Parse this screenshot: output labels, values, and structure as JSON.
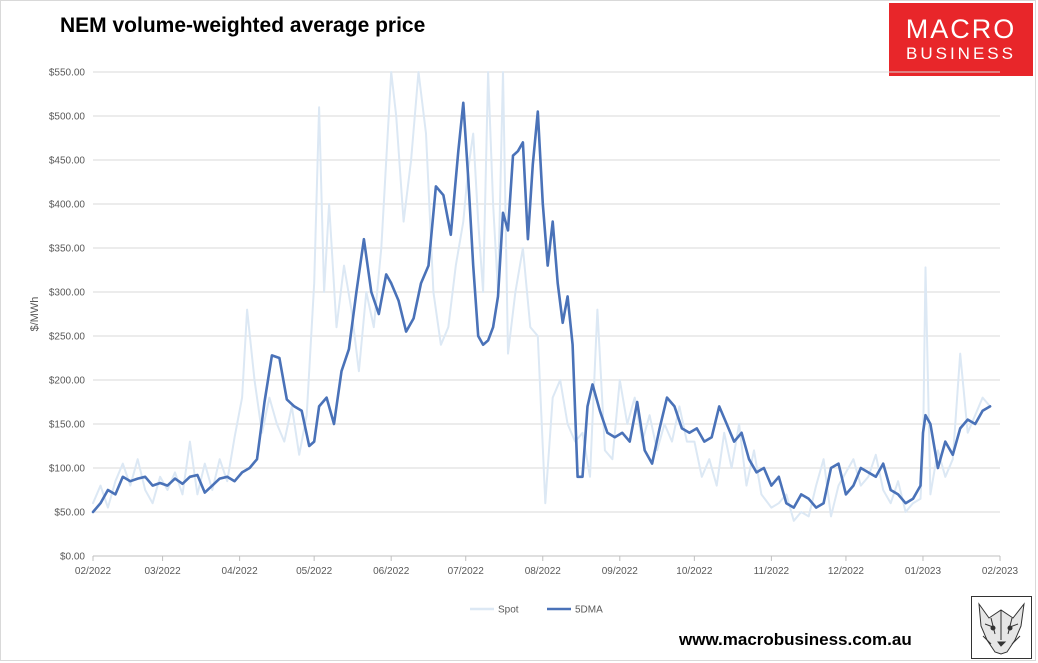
{
  "title": "NEM volume-weighted average price",
  "logo": {
    "line1": "MACRO",
    "line2": "BUSINESS",
    "bg": "#e8262a"
  },
  "website": "www.macrobusiness.com.au",
  "chart_data": {
    "type": "line",
    "ylabel": "$/MWh",
    "ylim": [
      0,
      550
    ],
    "yticks": [
      0,
      50,
      100,
      150,
      200,
      250,
      300,
      350,
      400,
      450,
      500,
      550
    ],
    "ytick_labels": [
      "$0.00",
      "$50.00",
      "$100.00",
      "$150.00",
      "$200.00",
      "$250.00",
      "$300.00",
      "$350.00",
      "$400.00",
      "$450.00",
      "$500.00",
      "$550.00"
    ],
    "xlim": [
      "2022-02-01",
      "2023-02-01"
    ],
    "xticks": [
      "2022-02-01",
      "2022-03-01",
      "2022-04-01",
      "2022-05-01",
      "2022-06-01",
      "2022-07-01",
      "2022-08-01",
      "2022-09-01",
      "2022-10-01",
      "2022-11-01",
      "2022-12-01",
      "2023-01-01",
      "2023-02-01"
    ],
    "xtick_labels": [
      "02/2022",
      "03/2022",
      "04/2022",
      "05/2022",
      "06/2022",
      "07/2022",
      "08/2022",
      "09/2022",
      "10/2022",
      "11/2022",
      "12/2022",
      "01/2023",
      "02/2023"
    ],
    "grid": "horizontal",
    "legend": "bottom-center",
    "series": [
      {
        "name": "Spot",
        "color": "#dce8f4",
        "points": [
          [
            "2022-02-01",
            60
          ],
          [
            "2022-02-04",
            80
          ],
          [
            "2022-02-07",
            55
          ],
          [
            "2022-02-10",
            85
          ],
          [
            "2022-02-13",
            105
          ],
          [
            "2022-02-16",
            80
          ],
          [
            "2022-02-19",
            110
          ],
          [
            "2022-02-22",
            75
          ],
          [
            "2022-02-25",
            60
          ],
          [
            "2022-02-28",
            90
          ],
          [
            "2022-03-03",
            75
          ],
          [
            "2022-03-06",
            95
          ],
          [
            "2022-03-09",
            70
          ],
          [
            "2022-03-12",
            130
          ],
          [
            "2022-03-15",
            70
          ],
          [
            "2022-03-18",
            105
          ],
          [
            "2022-03-21",
            75
          ],
          [
            "2022-03-24",
            110
          ],
          [
            "2022-03-27",
            85
          ],
          [
            "2022-03-30",
            135
          ],
          [
            "2022-04-02",
            180
          ],
          [
            "2022-04-04",
            280
          ],
          [
            "2022-04-07",
            200
          ],
          [
            "2022-04-10",
            140
          ],
          [
            "2022-04-13",
            180
          ],
          [
            "2022-04-16",
            150
          ],
          [
            "2022-04-19",
            130
          ],
          [
            "2022-04-22",
            170
          ],
          [
            "2022-04-25",
            115
          ],
          [
            "2022-04-28",
            160
          ],
          [
            "2022-05-01",
            310
          ],
          [
            "2022-05-03",
            510
          ],
          [
            "2022-05-05",
            300
          ],
          [
            "2022-05-07",
            400
          ],
          [
            "2022-05-10",
            260
          ],
          [
            "2022-05-13",
            330
          ],
          [
            "2022-05-16",
            280
          ],
          [
            "2022-05-19",
            210
          ],
          [
            "2022-05-22",
            300
          ],
          [
            "2022-05-25",
            260
          ],
          [
            "2022-05-28",
            350
          ],
          [
            "2022-06-01",
            550
          ],
          [
            "2022-06-03",
            500
          ],
          [
            "2022-06-06",
            380
          ],
          [
            "2022-06-09",
            450
          ],
          [
            "2022-06-12",
            550
          ],
          [
            "2022-06-15",
            480
          ],
          [
            "2022-06-18",
            300
          ],
          [
            "2022-06-21",
            240
          ],
          [
            "2022-06-24",
            260
          ],
          [
            "2022-06-27",
            330
          ],
          [
            "2022-06-30",
            380
          ],
          [
            "2022-07-02",
            440
          ],
          [
            "2022-07-04",
            480
          ],
          [
            "2022-07-06",
            380
          ],
          [
            "2022-07-08",
            300
          ],
          [
            "2022-07-10",
            550
          ],
          [
            "2022-07-12",
            400
          ],
          [
            "2022-07-14",
            300
          ],
          [
            "2022-07-16",
            550
          ],
          [
            "2022-07-18",
            230
          ],
          [
            "2022-07-21",
            300
          ],
          [
            "2022-07-24",
            350
          ],
          [
            "2022-07-27",
            260
          ],
          [
            "2022-07-30",
            250
          ],
          [
            "2022-08-02",
            60
          ],
          [
            "2022-08-05",
            180
          ],
          [
            "2022-08-08",
            200
          ],
          [
            "2022-08-11",
            150
          ],
          [
            "2022-08-14",
            130
          ],
          [
            "2022-08-17",
            140
          ],
          [
            "2022-08-20",
            90
          ],
          [
            "2022-08-23",
            280
          ],
          [
            "2022-08-26",
            120
          ],
          [
            "2022-08-29",
            110
          ],
          [
            "2022-09-01",
            200
          ],
          [
            "2022-09-04",
            150
          ],
          [
            "2022-09-07",
            180
          ],
          [
            "2022-09-10",
            130
          ],
          [
            "2022-09-13",
            160
          ],
          [
            "2022-09-16",
            120
          ],
          [
            "2022-09-19",
            150
          ],
          [
            "2022-09-22",
            130
          ],
          [
            "2022-09-25",
            170
          ],
          [
            "2022-09-28",
            130
          ],
          [
            "2022-10-01",
            130
          ],
          [
            "2022-10-04",
            90
          ],
          [
            "2022-10-07",
            110
          ],
          [
            "2022-10-10",
            80
          ],
          [
            "2022-10-13",
            140
          ],
          [
            "2022-10-16",
            100
          ],
          [
            "2022-10-19",
            150
          ],
          [
            "2022-10-22",
            80
          ],
          [
            "2022-10-25",
            120
          ],
          [
            "2022-10-28",
            70
          ],
          [
            "2022-11-01",
            55
          ],
          [
            "2022-11-04",
            60
          ],
          [
            "2022-11-07",
            70
          ],
          [
            "2022-11-10",
            40
          ],
          [
            "2022-11-13",
            50
          ],
          [
            "2022-11-16",
            45
          ],
          [
            "2022-11-19",
            80
          ],
          [
            "2022-11-22",
            110
          ],
          [
            "2022-11-25",
            45
          ],
          [
            "2022-11-28",
            80
          ],
          [
            "2022-12-01",
            95
          ],
          [
            "2022-12-04",
            110
          ],
          [
            "2022-12-07",
            80
          ],
          [
            "2022-12-10",
            90
          ],
          [
            "2022-12-13",
            115
          ],
          [
            "2022-12-16",
            75
          ],
          [
            "2022-12-19",
            60
          ],
          [
            "2022-12-22",
            85
          ],
          [
            "2022-12-25",
            50
          ],
          [
            "2022-12-28",
            60
          ],
          [
            "2022-12-31",
            65
          ],
          [
            "2023-01-01",
            120
          ],
          [
            "2023-01-02",
            328
          ],
          [
            "2023-01-04",
            70
          ],
          [
            "2023-01-07",
            120
          ],
          [
            "2023-01-10",
            90
          ],
          [
            "2023-01-13",
            110
          ],
          [
            "2023-01-16",
            230
          ],
          [
            "2023-01-19",
            140
          ],
          [
            "2023-01-22",
            160
          ],
          [
            "2023-01-25",
            180
          ],
          [
            "2023-01-28",
            170
          ]
        ]
      },
      {
        "name": "5DMA",
        "color": "#4a72b8",
        "points": [
          [
            "2022-02-01",
            50
          ],
          [
            "2022-02-04",
            60
          ],
          [
            "2022-02-07",
            75
          ],
          [
            "2022-02-10",
            70
          ],
          [
            "2022-02-13",
            90
          ],
          [
            "2022-02-16",
            85
          ],
          [
            "2022-02-19",
            88
          ],
          [
            "2022-02-22",
            90
          ],
          [
            "2022-02-25",
            80
          ],
          [
            "2022-02-28",
            83
          ],
          [
            "2022-03-03",
            80
          ],
          [
            "2022-03-06",
            88
          ],
          [
            "2022-03-09",
            82
          ],
          [
            "2022-03-12",
            90
          ],
          [
            "2022-03-15",
            92
          ],
          [
            "2022-03-18",
            72
          ],
          [
            "2022-03-21",
            80
          ],
          [
            "2022-03-24",
            88
          ],
          [
            "2022-03-27",
            90
          ],
          [
            "2022-03-30",
            85
          ],
          [
            "2022-04-02",
            95
          ],
          [
            "2022-04-05",
            100
          ],
          [
            "2022-04-08",
            110
          ],
          [
            "2022-04-11",
            175
          ],
          [
            "2022-04-14",
            228
          ],
          [
            "2022-04-17",
            225
          ],
          [
            "2022-04-20",
            178
          ],
          [
            "2022-04-23",
            170
          ],
          [
            "2022-04-26",
            165
          ],
          [
            "2022-04-29",
            125
          ],
          [
            "2022-05-01",
            130
          ],
          [
            "2022-05-03",
            170
          ],
          [
            "2022-05-06",
            180
          ],
          [
            "2022-05-09",
            150
          ],
          [
            "2022-05-12",
            210
          ],
          [
            "2022-05-15",
            235
          ],
          [
            "2022-05-18",
            300
          ],
          [
            "2022-05-21",
            360
          ],
          [
            "2022-05-24",
            300
          ],
          [
            "2022-05-27",
            275
          ],
          [
            "2022-05-30",
            320
          ],
          [
            "2022-06-01",
            310
          ],
          [
            "2022-06-04",
            290
          ],
          [
            "2022-06-07",
            255
          ],
          [
            "2022-06-10",
            270
          ],
          [
            "2022-06-13",
            310
          ],
          [
            "2022-06-16",
            330
          ],
          [
            "2022-06-19",
            420
          ],
          [
            "2022-06-22",
            410
          ],
          [
            "2022-06-25",
            365
          ],
          [
            "2022-06-28",
            460
          ],
          [
            "2022-06-30",
            515
          ],
          [
            "2022-07-02",
            430
          ],
          [
            "2022-07-04",
            330
          ],
          [
            "2022-07-06",
            250
          ],
          [
            "2022-07-08",
            240
          ],
          [
            "2022-07-10",
            245
          ],
          [
            "2022-07-12",
            260
          ],
          [
            "2022-07-14",
            295
          ],
          [
            "2022-07-16",
            390
          ],
          [
            "2022-07-18",
            370
          ],
          [
            "2022-07-20",
            455
          ],
          [
            "2022-07-22",
            460
          ],
          [
            "2022-07-24",
            470
          ],
          [
            "2022-07-26",
            360
          ],
          [
            "2022-07-28",
            445
          ],
          [
            "2022-07-30",
            505
          ],
          [
            "2022-08-01",
            400
          ],
          [
            "2022-08-03",
            330
          ],
          [
            "2022-08-05",
            380
          ],
          [
            "2022-08-07",
            310
          ],
          [
            "2022-08-09",
            265
          ],
          [
            "2022-08-11",
            295
          ],
          [
            "2022-08-13",
            240
          ],
          [
            "2022-08-15",
            90
          ],
          [
            "2022-08-17",
            90
          ],
          [
            "2022-08-19",
            170
          ],
          [
            "2022-08-21",
            195
          ],
          [
            "2022-08-24",
            165
          ],
          [
            "2022-08-27",
            140
          ],
          [
            "2022-08-30",
            135
          ],
          [
            "2022-09-02",
            140
          ],
          [
            "2022-09-05",
            130
          ],
          [
            "2022-09-08",
            175
          ],
          [
            "2022-09-11",
            120
          ],
          [
            "2022-09-14",
            105
          ],
          [
            "2022-09-17",
            145
          ],
          [
            "2022-09-20",
            180
          ],
          [
            "2022-09-23",
            170
          ],
          [
            "2022-09-26",
            145
          ],
          [
            "2022-09-29",
            140
          ],
          [
            "2022-10-02",
            145
          ],
          [
            "2022-10-05",
            130
          ],
          [
            "2022-10-08",
            135
          ],
          [
            "2022-10-11",
            170
          ],
          [
            "2022-10-14",
            150
          ],
          [
            "2022-10-17",
            130
          ],
          [
            "2022-10-20",
            140
          ],
          [
            "2022-10-23",
            110
          ],
          [
            "2022-10-26",
            95
          ],
          [
            "2022-10-29",
            100
          ],
          [
            "2022-11-01",
            80
          ],
          [
            "2022-11-04",
            90
          ],
          [
            "2022-11-07",
            60
          ],
          [
            "2022-11-10",
            55
          ],
          [
            "2022-11-13",
            70
          ],
          [
            "2022-11-16",
            65
          ],
          [
            "2022-11-19",
            55
          ],
          [
            "2022-11-22",
            60
          ],
          [
            "2022-11-25",
            100
          ],
          [
            "2022-11-28",
            105
          ],
          [
            "2022-12-01",
            70
          ],
          [
            "2022-12-04",
            80
          ],
          [
            "2022-12-07",
            100
          ],
          [
            "2022-12-10",
            95
          ],
          [
            "2022-12-13",
            90
          ],
          [
            "2022-12-16",
            105
          ],
          [
            "2022-12-19",
            75
          ],
          [
            "2022-12-22",
            70
          ],
          [
            "2022-12-25",
            60
          ],
          [
            "2022-12-28",
            65
          ],
          [
            "2022-12-31",
            80
          ],
          [
            "2023-01-01",
            140
          ],
          [
            "2023-01-02",
            160
          ],
          [
            "2023-01-04",
            150
          ],
          [
            "2023-01-07",
            100
          ],
          [
            "2023-01-10",
            130
          ],
          [
            "2023-01-13",
            115
          ],
          [
            "2023-01-16",
            145
          ],
          [
            "2023-01-19",
            155
          ],
          [
            "2023-01-22",
            150
          ],
          [
            "2023-01-25",
            165
          ],
          [
            "2023-01-28",
            170
          ]
        ]
      }
    ]
  }
}
